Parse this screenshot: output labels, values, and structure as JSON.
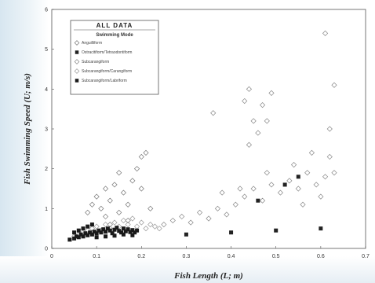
{
  "chart_data": {
    "type": "scatter",
    "xlabel": "Fish Length (L; m)",
    "ylabel": "Fish Swimming Speed (U; m/s)",
    "xlim": [
      0,
      0.7
    ],
    "ylim": [
      0,
      6
    ],
    "xticks": [
      "0",
      "0.1",
      "0.2",
      "0.3",
      "0.4",
      "0.5",
      "0.6",
      "0.7"
    ],
    "yticks": [
      "0",
      "1",
      "2",
      "3",
      "4",
      "5",
      "6"
    ],
    "legend": {
      "title": "ALL DATA",
      "subtitle": "Swimming Mode",
      "placement": "top-left"
    },
    "series": [
      {
        "name": "Anguilliform",
        "marker": "open-diamond",
        "color": "#777777",
        "points": [
          [
            0.08,
            0.9
          ],
          [
            0.09,
            1.1
          ],
          [
            0.1,
            1.3
          ],
          [
            0.11,
            1.0
          ],
          [
            0.12,
            0.8
          ],
          [
            0.13,
            1.2
          ],
          [
            0.14,
            1.6
          ],
          [
            0.15,
            1.9
          ],
          [
            0.16,
            1.4
          ],
          [
            0.17,
            1.1
          ],
          [
            0.18,
            1.7
          ],
          [
            0.19,
            2.0
          ],
          [
            0.2,
            2.3
          ],
          [
            0.21,
            2.4
          ],
          [
            0.2,
            1.5
          ],
          [
            0.15,
            0.9
          ],
          [
            0.12,
            1.5
          ],
          [
            0.17,
            0.7
          ],
          [
            0.22,
            1.0
          ],
          [
            0.13,
            0.6
          ]
        ]
      },
      {
        "name": "Ostracitiform/Tetraodontiform",
        "marker": "filled-square",
        "color": "#222222",
        "points": [
          [
            0.3,
            0.35
          ],
          [
            0.4,
            0.4
          ],
          [
            0.5,
            0.45
          ],
          [
            0.6,
            0.5
          ],
          [
            0.55,
            1.8
          ],
          [
            0.52,
            1.6
          ],
          [
            0.46,
            1.2
          ]
        ]
      },
      {
        "name": "Subcarangiform",
        "marker": "open-diamond",
        "color": "#888888",
        "points": [
          [
            0.25,
            0.6
          ],
          [
            0.27,
            0.7
          ],
          [
            0.29,
            0.8
          ],
          [
            0.31,
            0.65
          ],
          [
            0.33,
            0.9
          ],
          [
            0.35,
            0.75
          ],
          [
            0.37,
            1.0
          ],
          [
            0.39,
            0.85
          ],
          [
            0.41,
            1.1
          ],
          [
            0.43,
            1.3
          ],
          [
            0.45,
            1.5
          ],
          [
            0.47,
            1.2
          ],
          [
            0.49,
            1.6
          ],
          [
            0.51,
            1.4
          ],
          [
            0.53,
            1.7
          ],
          [
            0.55,
            1.5
          ],
          [
            0.57,
            1.9
          ],
          [
            0.59,
            1.6
          ],
          [
            0.61,
            1.8
          ],
          [
            0.63,
            1.9
          ],
          [
            0.62,
            2.3
          ],
          [
            0.58,
            2.4
          ],
          [
            0.54,
            2.1
          ],
          [
            0.48,
            1.9
          ],
          [
            0.44,
            2.6
          ],
          [
            0.46,
            2.9
          ],
          [
            0.48,
            3.2
          ],
          [
            0.43,
            3.7
          ],
          [
            0.44,
            4.0
          ],
          [
            0.47,
            3.6
          ],
          [
            0.49,
            3.9
          ],
          [
            0.36,
            3.4
          ],
          [
            0.61,
            5.4
          ],
          [
            0.63,
            4.1
          ],
          [
            0.62,
            3.0
          ],
          [
            0.45,
            3.2
          ],
          [
            0.42,
            1.5
          ],
          [
            0.38,
            1.4
          ],
          [
            0.56,
            1.1
          ],
          [
            0.6,
            1.3
          ]
        ]
      },
      {
        "name": "Subcarangiform/Carangiform",
        "marker": "open-diamond",
        "color": "#999999",
        "points": [
          [
            0.05,
            0.3
          ],
          [
            0.06,
            0.35
          ],
          [
            0.07,
            0.4
          ],
          [
            0.08,
            0.45
          ],
          [
            0.09,
            0.5
          ],
          [
            0.1,
            0.55
          ],
          [
            0.11,
            0.45
          ],
          [
            0.12,
            0.6
          ],
          [
            0.13,
            0.5
          ],
          [
            0.14,
            0.65
          ],
          [
            0.15,
            0.55
          ],
          [
            0.16,
            0.7
          ],
          [
            0.17,
            0.6
          ],
          [
            0.18,
            0.75
          ],
          [
            0.19,
            0.55
          ],
          [
            0.2,
            0.65
          ],
          [
            0.21,
            0.5
          ],
          [
            0.22,
            0.6
          ],
          [
            0.23,
            0.55
          ],
          [
            0.24,
            0.5
          ]
        ]
      },
      {
        "name": "Subcarangiform/Labriform",
        "marker": "filled-square",
        "color": "#1a1a1a",
        "points": [
          [
            0.04,
            0.22
          ],
          [
            0.05,
            0.25
          ],
          [
            0.055,
            0.3
          ],
          [
            0.06,
            0.28
          ],
          [
            0.065,
            0.35
          ],
          [
            0.07,
            0.3
          ],
          [
            0.075,
            0.38
          ],
          [
            0.08,
            0.33
          ],
          [
            0.085,
            0.4
          ],
          [
            0.09,
            0.35
          ],
          [
            0.095,
            0.42
          ],
          [
            0.1,
            0.38
          ],
          [
            0.105,
            0.45
          ],
          [
            0.11,
            0.4
          ],
          [
            0.115,
            0.48
          ],
          [
            0.12,
            0.42
          ],
          [
            0.125,
            0.5
          ],
          [
            0.13,
            0.45
          ],
          [
            0.135,
            0.38
          ],
          [
            0.14,
            0.47
          ],
          [
            0.145,
            0.52
          ],
          [
            0.15,
            0.44
          ],
          [
            0.155,
            0.4
          ],
          [
            0.16,
            0.5
          ],
          [
            0.165,
            0.43
          ],
          [
            0.17,
            0.48
          ],
          [
            0.175,
            0.41
          ],
          [
            0.18,
            0.46
          ],
          [
            0.185,
            0.4
          ],
          [
            0.19,
            0.45
          ],
          [
            0.06,
            0.45
          ],
          [
            0.07,
            0.5
          ],
          [
            0.08,
            0.55
          ],
          [
            0.09,
            0.6
          ],
          [
            0.05,
            0.4
          ],
          [
            0.1,
            0.28
          ],
          [
            0.12,
            0.3
          ],
          [
            0.14,
            0.32
          ],
          [
            0.16,
            0.35
          ],
          [
            0.18,
            0.33
          ]
        ]
      }
    ]
  }
}
